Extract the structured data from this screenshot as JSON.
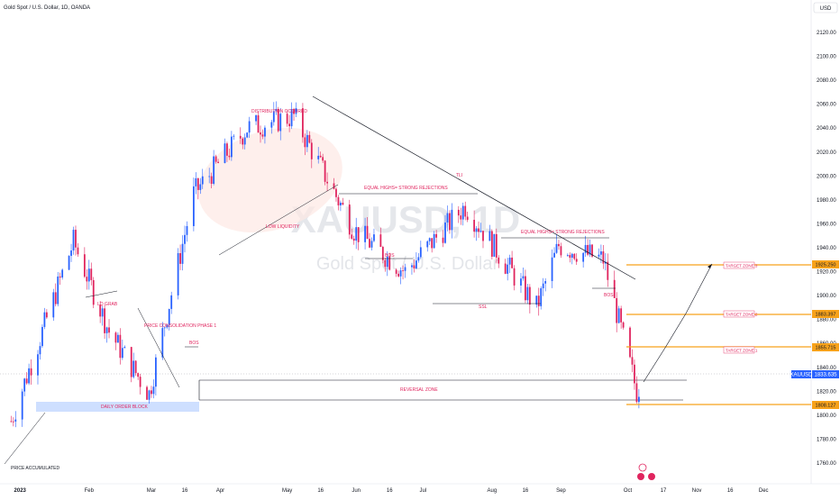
{
  "header": {
    "symbol_title": "Gold Spot / U.S. Dollar, 1D, OANDA"
  },
  "watermark": {
    "ticker": "XAUUSD, 1D",
    "name": "Gold Spot / U.S. Dollar"
  },
  "currency_button": "USD",
  "price_tags": {
    "current": {
      "symbol": "XAUUSD",
      "value": "1833.635"
    },
    "tz3": "1925.250",
    "tz2": "1883.397",
    "tz1": "1855.715",
    "stop": "1808.127"
  },
  "annotations": {
    "distribution": "DISTRIBUTION OCCURED",
    "low_liquidity": "LOW LIQUIDITY",
    "eq_highs_1": "EQUAL HIGHS= STRONG REJECTIONS",
    "eq_highs_2": "EQUAL HIGHS= STRONG REJECTIONS",
    "tli": "TLI",
    "bos_jun": "BOS",
    "bos_mar": "BOS",
    "bos_sep": "BOS",
    "ssl": "SSL",
    "lq_grab": "LQ GRAB",
    "consolidation": "PRICE CONSOLIDATION PHASE 1",
    "order_block": "DAILY ORDER BLOCK",
    "reversal": "REVERSAL ZONE",
    "accumulated": "PRICE ACCUMULATED",
    "tz1": "TARGET ZONE 1",
    "tz2": "TARGET ZONE 2",
    "tz3": "TARGET ZONE 3"
  },
  "colors": {
    "bull": "#2962ff",
    "bear": "#e0245e",
    "target_line": "#f7a21b",
    "order_block": "#c9dcff",
    "current_tag": "#2962ff"
  },
  "chart_data": {
    "type": "candlestick",
    "title": "Gold Spot / U.S. Dollar, 1D, OANDA",
    "y_axis_ticks": [
      1760,
      1780,
      1800,
      1820,
      1840,
      1860,
      1880,
      1900,
      1920,
      1940,
      1960,
      1980,
      2000,
      2020,
      2040,
      2060,
      2080,
      2100,
      2120
    ],
    "x_axis_ticks": [
      "2023",
      "Feb",
      "Mar",
      "16",
      "Apr",
      "May",
      "16",
      "Jun",
      "16",
      "Jul",
      "Aug",
      "16",
      "Sep",
      "Oct",
      "17",
      "Nov",
      "16",
      "Dec"
    ],
    "approx_close_path": [
      {
        "date": "2022-12-28",
        "close": 1795
      },
      {
        "date": "2023-01-25",
        "close": 1945
      },
      {
        "date": "2023-02-10",
        "close": 1870
      },
      {
        "date": "2023-02-28",
        "close": 1818
      },
      {
        "date": "2023-03-20",
        "close": 1985
      },
      {
        "date": "2023-04-13",
        "close": 2040
      },
      {
        "date": "2023-05-04",
        "close": 2050
      },
      {
        "date": "2023-05-31",
        "close": 1955
      },
      {
        "date": "2023-06-23",
        "close": 1920
      },
      {
        "date": "2023-07-20",
        "close": 1975
      },
      {
        "date": "2023-08-21",
        "close": 1890
      },
      {
        "date": "2023-08-31",
        "close": 1942
      },
      {
        "date": "2023-09-20",
        "close": 1930
      },
      {
        "date": "2023-10-05",
        "close": 1820
      },
      {
        "date": "2023-10-09",
        "close": 1833.6
      }
    ],
    "levels": {
      "target_zone_3": 1925.25,
      "target_zone_2": 1883.397,
      "target_zone_1": 1855.715,
      "stop": 1808.127,
      "current": 1833.635
    },
    "grid": false,
    "legend": "none"
  }
}
